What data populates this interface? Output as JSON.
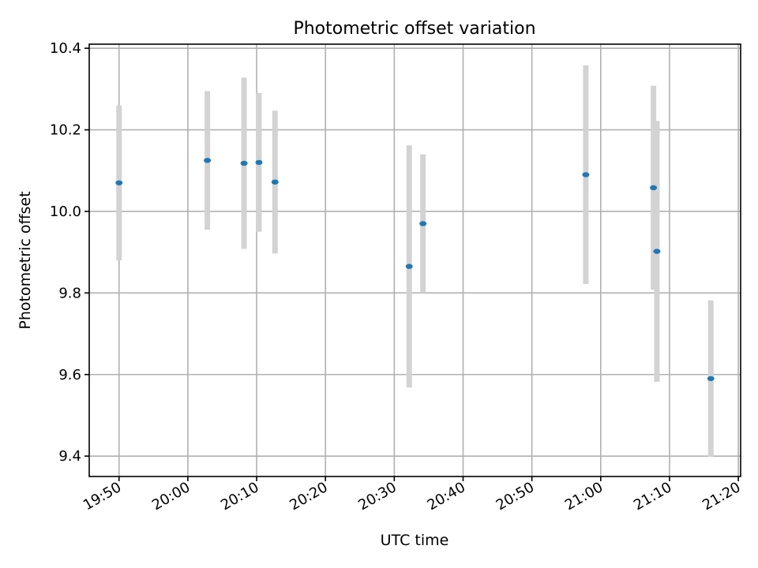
{
  "chart_data": {
    "type": "scatter",
    "title": "Photometric offset variation",
    "xlabel": "UTC time",
    "ylabel": "Photometric offset",
    "x_ticks": [
      "19:50",
      "20:00",
      "20:10",
      "20:20",
      "20:30",
      "20:40",
      "20:50",
      "21:00",
      "21:10",
      "21:20"
    ],
    "y_ticks": [
      "9.4",
      "9.6",
      "9.8",
      "10.0",
      "10.2",
      "10.4"
    ],
    "xlim": [
      "19:45:40",
      "21:20:20"
    ],
    "ylim": [
      9.35,
      10.41
    ],
    "grid": true,
    "colors": {
      "point": "#1f77b4",
      "errorbar": "#d3d3d3"
    },
    "points": [
      {
        "time": "19:50:00",
        "value": 10.07,
        "error": 0.19
      },
      {
        "time": "20:02:50",
        "value": 10.125,
        "error": 0.17
      },
      {
        "time": "20:08:10",
        "value": 10.118,
        "error": 0.21
      },
      {
        "time": "20:10:20",
        "value": 10.12,
        "error": 0.17
      },
      {
        "time": "20:12:40",
        "value": 10.072,
        "error": 0.175
      },
      {
        "time": "20:32:10",
        "value": 9.865,
        "error": 0.297
      },
      {
        "time": "20:34:10",
        "value": 9.97,
        "error": 0.17
      },
      {
        "time": "20:57:50",
        "value": 10.09,
        "error": 0.268
      },
      {
        "time": "21:07:40",
        "value": 10.058,
        "error": 0.25
      },
      {
        "time": "21:08:10",
        "value": 9.902,
        "error": 0.32
      },
      {
        "time": "21:16:00",
        "value": 9.59,
        "error": 0.192
      }
    ]
  }
}
